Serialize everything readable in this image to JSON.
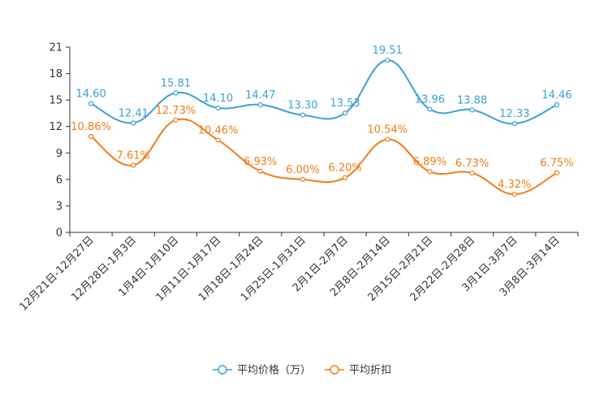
{
  "chart_data": {
    "type": "line",
    "categories": [
      "12月21日-12月27日",
      "12月28日-1月3日",
      "1月4日-1月10日",
      "1月11日-1月17日",
      "1月18日-1月24日",
      "1月25日-1月31日",
      "2月1日-2月7日",
      "2月8日-2月14日",
      "2月15日-2月21日",
      "2月22日-2月28日",
      "3月1日-3月7日",
      "3月8日-3月14日"
    ],
    "ylim": [
      0,
      21
    ],
    "yticks": [
      "0",
      "3",
      "6",
      "9",
      "12",
      "15",
      "18",
      "21"
    ],
    "series": [
      {
        "name": "平均价格（万）",
        "color": "#3ba1d1",
        "values": [
          14.6,
          12.41,
          15.81,
          14.1,
          14.47,
          13.3,
          13.53,
          19.51,
          13.96,
          13.88,
          12.33,
          14.46
        ],
        "labels": [
          "14.60",
          "12.41",
          "15.81",
          "14.10",
          "14.47",
          "13.30",
          "13.53",
          "19.51",
          "13.96",
          "13.88",
          "12.33",
          "14.46"
        ]
      },
      {
        "name": "平均折扣",
        "color": "#f07d18",
        "values": [
          10.86,
          7.61,
          12.73,
          10.46,
          6.93,
          6.0,
          6.2,
          10.54,
          6.89,
          6.73,
          4.32,
          6.75
        ],
        "labels": [
          "10.86%",
          "7.61%",
          "12.73%",
          "10.46%",
          "6.93%",
          "6.00%",
          "6.20%",
          "10.54%",
          "6.89%",
          "6.73%",
          "4.32%",
          "6.75%"
        ]
      }
    ],
    "legend_position": "bottom-center",
    "grid": false
  }
}
